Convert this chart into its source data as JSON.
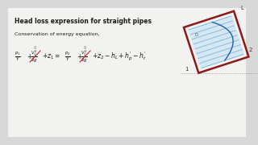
{
  "bg_color": "#d8d8d8",
  "content_bg": "#f0f0f0",
  "title": "Head loss expression for straight pipes",
  "subtitle": "Conservation of energy equation,",
  "title_fontsize": 5.5,
  "subtitle_fontsize": 4.5,
  "eq_fontsize": 5.5,
  "text_color": "#1a1a1a",
  "red_color": "#cc2222",
  "gray_color": "#666666",
  "pipe_border_color": "#8B1A1A",
  "pipe_fill_color": "#cce4f5",
  "pipe_line_color": "#6baed6",
  "pipe_curve_color": "#2060a0"
}
